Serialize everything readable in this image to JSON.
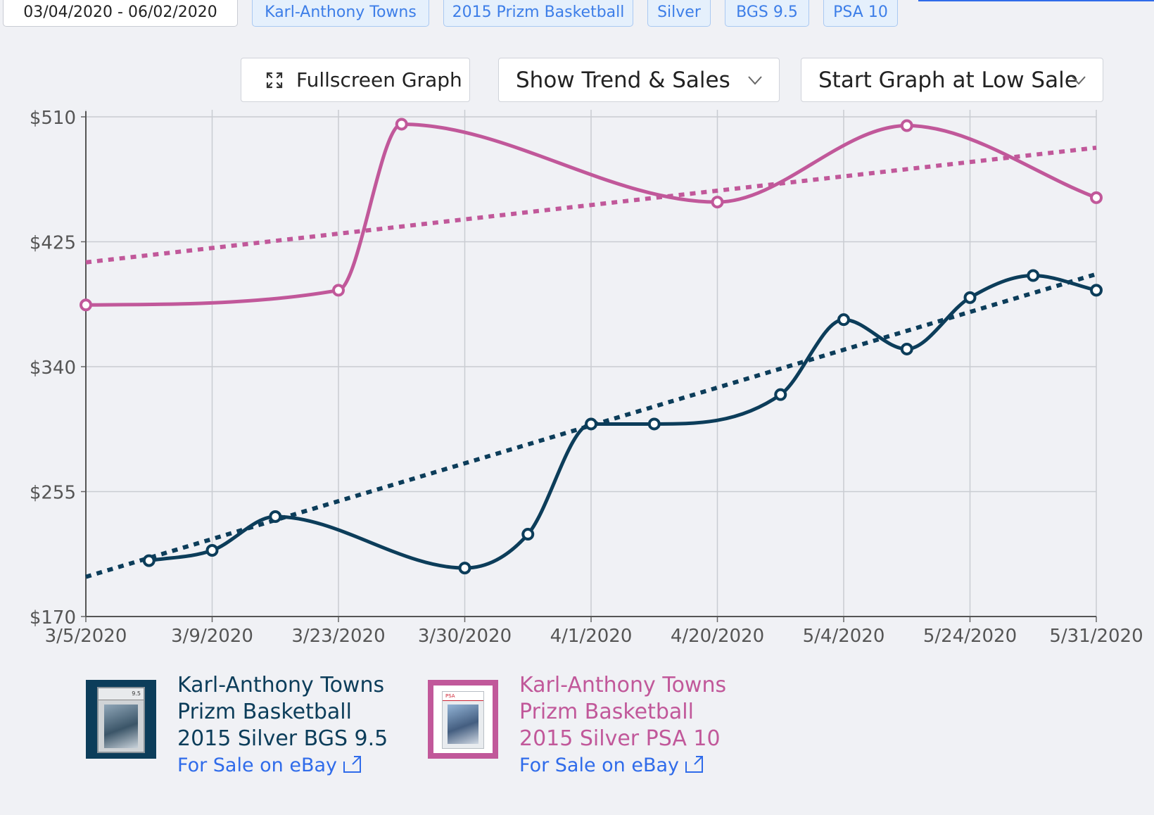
{
  "filters": {
    "date_range": "03/04/2020 - 06/02/2020",
    "chips": [
      "Karl-Anthony Towns",
      "2015 Prizm Basketball",
      "Silver",
      "BGS 9.5",
      "PSA 10"
    ]
  },
  "controls": {
    "fullscreen_label": "Fullscreen Graph",
    "fullscreen_icon": "expand-icon",
    "trend_select": "Show Trend & Sales",
    "start_select": "Start Graph at Low Sale"
  },
  "colors": {
    "navy": "#0c3d5a",
    "pink": "#c1589a",
    "link": "#2f6bea",
    "chip_text": "#3d7ee8"
  },
  "chart_data": {
    "type": "line",
    "x_tick_labels": [
      "3/5/2020",
      "3/9/2020",
      "3/23/2020",
      "3/30/2020",
      "4/1/2020",
      "4/20/2020",
      "5/4/2020",
      "5/24/2020",
      "5/31/2020"
    ],
    "y_tick_labels": [
      "$510",
      "$425",
      "$340",
      "$255",
      "$170"
    ],
    "ylim": [
      170,
      510
    ],
    "grid": true,
    "smooth": true,
    "series": [
      {
        "name": "Karl-Anthony Towns Prizm Basketball 2015 Silver BGS 9.5",
        "color": "#0c3d5a",
        "points": [
          {
            "x": 0.5,
            "y": 208
          },
          {
            "x": 1.0,
            "y": 215
          },
          {
            "x": 1.5,
            "y": 238
          },
          {
            "x": 3.0,
            "y": 203
          },
          {
            "x": 3.5,
            "y": 226
          },
          {
            "x": 4.0,
            "y": 301
          },
          {
            "x": 4.5,
            "y": 301
          },
          {
            "x": 5.5,
            "y": 321
          },
          {
            "x": 6.0,
            "y": 372
          },
          {
            "x": 6.5,
            "y": 352
          },
          {
            "x": 7.0,
            "y": 387
          },
          {
            "x": 7.5,
            "y": 402
          },
          {
            "x": 8.0,
            "y": 392
          }
        ],
        "trend": [
          197,
          403
        ]
      },
      {
        "name": "Karl-Anthony Towns Prizm Basketball 2015 Silver PSA 10",
        "color": "#c1589a",
        "points": [
          {
            "x": 0.0,
            "y": 382
          },
          {
            "x": 2.0,
            "y": 392
          },
          {
            "x": 2.5,
            "y": 505
          },
          {
            "x": 5.0,
            "y": 452
          },
          {
            "x": 6.5,
            "y": 504
          },
          {
            "x": 8.0,
            "y": 455
          }
        ],
        "trend": [
          411,
          489
        ]
      }
    ]
  },
  "legend": [
    {
      "name_lines": [
        "Karl-Anthony Towns",
        "Prizm Basketball",
        "2015 Silver BGS 9.5"
      ],
      "link": "For Sale on eBay",
      "color": "#0c3d5a",
      "grade_icon": "bgs-slab-card-icon",
      "slab_label": "9.5"
    },
    {
      "name_lines": [
        "Karl-Anthony Towns",
        "Prizm Basketball",
        "2015 Silver PSA 10"
      ],
      "link": "For Sale on eBay",
      "color": "#c1589a",
      "grade_icon": "psa-slab-card-icon",
      "slab_label": "PSA"
    }
  ]
}
